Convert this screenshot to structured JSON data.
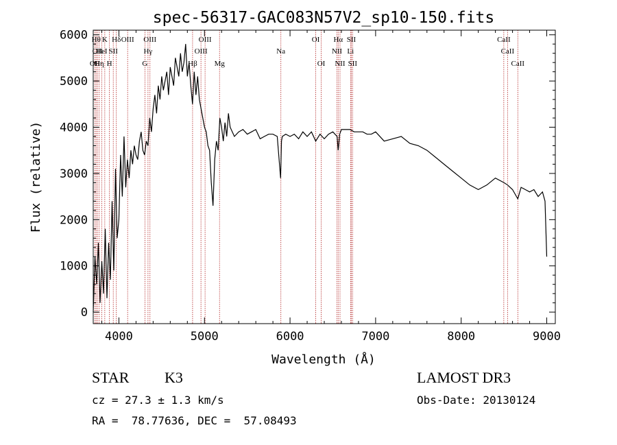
{
  "chart_data": {
    "type": "line",
    "title": "spec-56317-GAC083N57V2_sp10-150.fits",
    "xlabel": "Wavelength (Å)",
    "ylabel": "Flux (relative)",
    "xlim": [
      3700,
      9100
    ],
    "ylim": [
      -250,
      6100
    ],
    "xticks": [
      4000,
      5000,
      6000,
      7000,
      8000,
      9000
    ],
    "yticks": [
      0,
      1000,
      2000,
      3000,
      4000,
      5000,
      6000
    ],
    "grid": false,
    "line_color": "#000000",
    "marker_color": "#b22222",
    "series": [
      {
        "x": [
          3700,
          3720,
          3740,
          3760,
          3780,
          3800,
          3820,
          3840,
          3860,
          3880,
          3900,
          3920,
          3940,
          3960,
          3980,
          4000,
          4020,
          4040,
          4060,
          4080,
          4100,
          4120,
          4140,
          4160,
          4180,
          4200,
          4220,
          4240,
          4260,
          4280,
          4300,
          4320,
          4340,
          4360,
          4380,
          4400,
          4420,
          4440,
          4460,
          4480,
          4500,
          4520,
          4540,
          4560,
          4580,
          4600,
          4620,
          4640,
          4660,
          4680,
          4700,
          4720,
          4740,
          4760,
          4780,
          4800,
          4820,
          4840,
          4860,
          4880,
          4900,
          4920,
          4940,
          4960,
          4980,
          5000,
          5020,
          5040,
          5060,
          5080,
          5100,
          5120,
          5140,
          5160,
          5180,
          5200,
          5220,
          5240,
          5260,
          5280,
          5300,
          5350,
          5400,
          5450,
          5500,
          5550,
          5600,
          5650,
          5700,
          5750,
          5800,
          5850,
          5890,
          5900,
          5910,
          5950,
          6000,
          6050,
          6100,
          6150,
          6200,
          6250,
          6300,
          6350,
          6400,
          6450,
          6500,
          6550,
          6563,
          6580,
          6600,
          6650,
          6700,
          6750,
          6800,
          6850,
          6900,
          6950,
          7000,
          7100,
          7200,
          7300,
          7400,
          7500,
          7600,
          7700,
          7800,
          7900,
          8000,
          8100,
          8200,
          8300,
          8400,
          8500,
          8542,
          8600,
          8662,
          8700,
          8750,
          8800,
          8850,
          8900,
          8950,
          8980,
          9000
        ],
        "y": [
          0,
          1200,
          600,
          1500,
          200,
          1100,
          400,
          1800,
          300,
          1500,
          700,
          2400,
          900,
          3100,
          1600,
          2000,
          3400,
          2500,
          3800,
          2700,
          3300,
          2900,
          3500,
          3200,
          3600,
          3400,
          3300,
          3700,
          3900,
          3500,
          3400,
          3700,
          3600,
          4200,
          3900,
          4400,
          4700,
          4300,
          4900,
          4600,
          5100,
          4800,
          5000,
          5200,
          4700,
          5300,
          5100,
          4900,
          5500,
          5300,
          5100,
          5600,
          5200,
          5400,
          5800,
          5100,
          5400,
          4900,
          4500,
          5200,
          4700,
          5100,
          4600,
          4400,
          4200,
          4000,
          3900,
          3600,
          3500,
          2800,
          2300,
          3300,
          3700,
          3500,
          4200,
          4000,
          3700,
          4100,
          3800,
          4300,
          4000,
          3800,
          3900,
          3950,
          3850,
          3900,
          3950,
          3750,
          3800,
          3850,
          3850,
          3800,
          2900,
          3700,
          3800,
          3850,
          3800,
          3850,
          3750,
          3900,
          3800,
          3900,
          3700,
          3850,
          3750,
          3850,
          3900,
          3800,
          3500,
          3850,
          3950,
          3950,
          3950,
          3900,
          3900,
          3900,
          3850,
          3850,
          3900,
          3700,
          3750,
          3800,
          3650,
          3600,
          3500,
          3350,
          3200,
          3050,
          2900,
          2750,
          2650,
          2750,
          2900,
          2800,
          2750,
          2650,
          2450,
          2700,
          2650,
          2600,
          2650,
          2500,
          2600,
          2400,
          1200
        ]
      }
    ],
    "lines": [
      {
        "wl": 3720,
        "tier": 2,
        "label": "OII"
      },
      {
        "wl": 3734,
        "tier": 0,
        "label": "Hθ"
      },
      {
        "wl": 3750,
        "tier": 1,
        "label": "OII"
      },
      {
        "wl": 3770,
        "tier": 2,
        "label": "Hη"
      },
      {
        "wl": 3799,
        "tier": 1,
        "label": "HeI"
      },
      {
        "wl": 3835,
        "tier": 0,
        "label": "K"
      },
      {
        "wl": 3889,
        "tier": 2,
        "label": "H"
      },
      {
        "wl": 3934,
        "tier": 1,
        "label": "SII"
      },
      {
        "wl": 3970,
        "tier": 0,
        "label": "Hδ"
      },
      {
        "wl": 4102,
        "tier": 0,
        "label": "OIII"
      },
      {
        "wl": 4304,
        "tier": 2,
        "label": "G"
      },
      {
        "wl": 4340,
        "tier": 1,
        "label": "Hγ"
      },
      {
        "wl": 4363,
        "tier": 0,
        "label": "OIII"
      },
      {
        "wl": 4861,
        "tier": 2,
        "label": "Hβ"
      },
      {
        "wl": 4959,
        "tier": 1,
        "label": "OIII"
      },
      {
        "wl": 5007,
        "tier": 0,
        "label": "OIII"
      },
      {
        "wl": 5176,
        "tier": 2,
        "label": "Mg"
      },
      {
        "wl": 5893,
        "tier": 1,
        "label": "Na"
      },
      {
        "wl": 6300,
        "tier": 0,
        "label": "OI"
      },
      {
        "wl": 6364,
        "tier": 2,
        "label": "OI"
      },
      {
        "wl": 6548,
        "tier": 1,
        "label": "NII"
      },
      {
        "wl": 6563,
        "tier": 0,
        "label": "Hα"
      },
      {
        "wl": 6584,
        "tier": 2,
        "label": "NII"
      },
      {
        "wl": 6707,
        "tier": 1,
        "label": "Li"
      },
      {
        "wl": 6716,
        "tier": 0,
        "label": "SII"
      },
      {
        "wl": 6731,
        "tier": 2,
        "label": "SII"
      },
      {
        "wl": 8498,
        "tier": 0,
        "label": "CaII"
      },
      {
        "wl": 8542,
        "tier": 1,
        "label": "CaII"
      },
      {
        "wl": 8662,
        "tier": 2,
        "label": "CaII"
      }
    ]
  },
  "info": {
    "class": "STAR",
    "subclass": "K3",
    "survey": "LAMOST DR3",
    "cz": "cz = 27.3 ± 1.3 km/s",
    "obsdate": "Obs-Date: 20130124",
    "radec": "RA =  78.77636, DEC =  57.08493"
  }
}
